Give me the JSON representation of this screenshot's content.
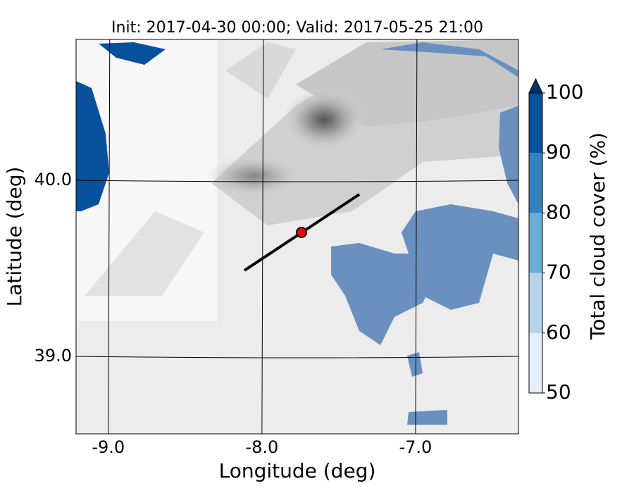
{
  "chart_data": {
    "type": "map",
    "title": "Init: 2017-04-30 00:00; Valid: 2017-05-25 21:00",
    "x_label": "Longitude (deg)",
    "y_label": "Latitude (deg)",
    "xlim": [
      -9.21,
      -6.33
    ],
    "ylim": [
      38.56,
      40.8
    ],
    "xticks": [
      {
        "value": -9,
        "label": "-9.0"
      },
      {
        "value": -8,
        "label": "-8.0"
      },
      {
        "value": -7,
        "label": "-7.0"
      }
    ],
    "yticks": [
      {
        "value": 39,
        "label": "39.0"
      },
      {
        "value": 40,
        "label": "40.0"
      }
    ],
    "grid": true,
    "colorbar": {
      "label": "Total cloud cover (%)",
      "clim": [
        50,
        100
      ],
      "ticks": [
        50,
        60,
        70,
        80,
        90,
        100
      ],
      "colors": [
        "#e3eef9",
        "#b6d3e9",
        "#6aaed6",
        "#3182bd",
        "#08519c"
      ],
      "extend_color": "#08306b"
    }
  }
}
